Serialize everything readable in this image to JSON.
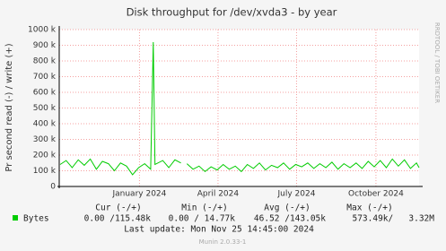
{
  "chart_data": {
    "type": "line",
    "title": "Disk throughput for /dev/xvda3 - by year",
    "y_label": "Pr second read (-) / write (+)",
    "watermark": "RRDTOOL / TOBI OETIKER",
    "xlim": [
      "2023-09-30",
      "2024-11-20"
    ],
    "xticks": [
      {
        "value": "2024-01-01",
        "label": "January 2024"
      },
      {
        "value": "2024-04-01",
        "label": "April 2024"
      },
      {
        "value": "2024-07-01",
        "label": "July 2024"
      },
      {
        "value": "2024-10-01",
        "label": "October 2024"
      }
    ],
    "ylim": [
      0,
      1000000
    ],
    "yticks": [
      0,
      {
        "value": 100000,
        "label": "100 k"
      },
      {
        "value": 200000,
        "label": "200 k"
      },
      {
        "value": 300000,
        "label": "300 k"
      },
      {
        "value": 400000,
        "label": "400 k"
      },
      {
        "value": 500000,
        "label": "500 k"
      },
      {
        "value": 600000,
        "label": "600 k"
      },
      {
        "value": 700000,
        "label": "700 k"
      },
      {
        "value": 800000,
        "label": "800 k"
      },
      {
        "value": 900000,
        "label": "900 k"
      },
      {
        "value": 1000000,
        "label": "1000 k"
      }
    ],
    "grid": true,
    "x": [
      "2023-10-01",
      "2023-10-08",
      "2023-10-15",
      "2023-10-22",
      "2023-10-29",
      "2023-11-05",
      "2023-11-12",
      "2023-11-19",
      "2023-11-26",
      "2023-12-03",
      "2023-12-10",
      "2023-12-17",
      "2023-12-24",
      "2023-12-31",
      "2024-01-07",
      "2024-01-14",
      "2024-01-17",
      "2024-01-19",
      "2024-01-28",
      "2024-02-04",
      "2024-02-11",
      "2024-02-18",
      "2024-02-22",
      "2024-02-25",
      "2024-03-03",
      "2024-03-10",
      "2024-03-17",
      "2024-03-24",
      "2024-03-31",
      "2024-04-07",
      "2024-04-14",
      "2024-04-21",
      "2024-04-28",
      "2024-05-05",
      "2024-05-12",
      "2024-05-19",
      "2024-05-26",
      "2024-06-02",
      "2024-06-09",
      "2024-06-16",
      "2024-06-23",
      "2024-06-30",
      "2024-07-07",
      "2024-07-14",
      "2024-07-21",
      "2024-07-28",
      "2024-08-04",
      "2024-08-11",
      "2024-08-18",
      "2024-08-25",
      "2024-09-01",
      "2024-09-08",
      "2024-09-15",
      "2024-09-22",
      "2024-09-29",
      "2024-10-06",
      "2024-10-13",
      "2024-10-20",
      "2024-10-27",
      "2024-11-03",
      "2024-11-10",
      "2024-11-17",
      "2024-11-20"
    ],
    "series": [
      {
        "name": "Bytes",
        "color": "#00cc00",
        "values": [
          140000,
          165000,
          120000,
          170000,
          135000,
          175000,
          110000,
          160000,
          145000,
          100000,
          150000,
          130000,
          75000,
          120000,
          145000,
          110000,
          920000,
          140000,
          165000,
          120000,
          170000,
          150000,
          null,
          145000,
          110000,
          130000,
          95000,
          125000,
          105000,
          140000,
          110000,
          130000,
          95000,
          140000,
          115000,
          150000,
          105000,
          135000,
          120000,
          150000,
          110000,
          140000,
          125000,
          150000,
          115000,
          145000,
          120000,
          155000,
          110000,
          145000,
          120000,
          150000,
          115000,
          160000,
          125000,
          165000,
          120000,
          175000,
          130000,
          170000,
          115000,
          150000,
          120000
        ]
      }
    ],
    "legend_headers": [
      "Cur (-/+)",
      "Min (-/+)",
      "Avg (-/+)",
      "Max (-/+)"
    ],
    "legend_stats": [
      "0.00 /115.48k",
      "0.00 / 14.77k",
      "46.52 /143.05k",
      "573.49k/   3.32M"
    ],
    "last_update": "Last update:  Mon Nov 25 14:45:00 2024",
    "footer": "Munin 2.0.33-1"
  }
}
